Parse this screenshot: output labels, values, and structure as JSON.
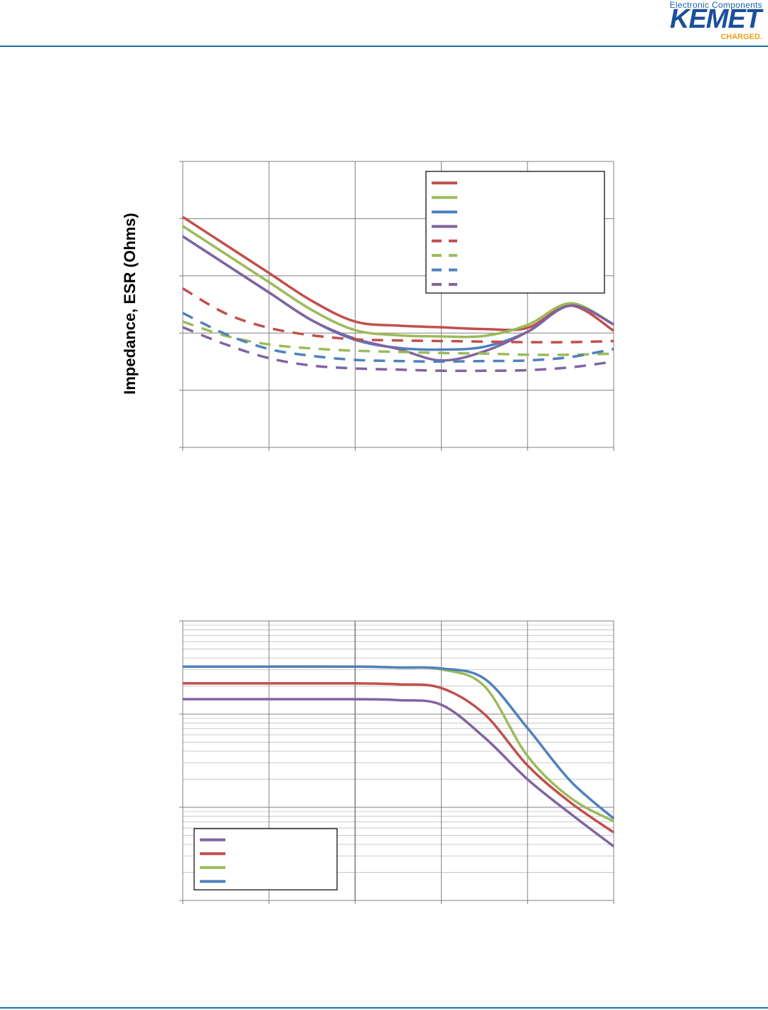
{
  "header": {
    "logo_tagline": "Electronic Components",
    "logo_brand": "KEMET",
    "logo_charged": "CHARGED."
  },
  "colors": {
    "rule": "#1f6fa8",
    "red": "#c0504d",
    "green": "#9bbb59",
    "blue": "#4f81bd",
    "purple": "#8064a2",
    "grid": "#808080"
  },
  "chart_data": [
    {
      "type": "line",
      "title": "",
      "ylabel": "Impedance, ESR (Ohms)",
      "xlabel": "",
      "x_scale": "log",
      "y_scale": "log",
      "x_decades": 5,
      "y_decades": 5,
      "grid": true,
      "legend_position": "top-right",
      "series": [
        {
          "color": "#c0504d",
          "style": "solid",
          "x": [
            0,
            0.5,
            1,
            1.5,
            2,
            2.5,
            3,
            3.5,
            4,
            4.5,
            5
          ],
          "y": [
            4.03,
            3.54,
            3.05,
            2.56,
            2.2,
            2.13,
            2.1,
            2.07,
            2.09,
            2.48,
            2.04
          ]
        },
        {
          "color": "#9bbb59",
          "style": "solid",
          "x": [
            0,
            0.5,
            1,
            1.5,
            2,
            2.5,
            3,
            3.5,
            4,
            4.5,
            5
          ],
          "y": [
            3.87,
            3.38,
            2.89,
            2.4,
            2.05,
            1.96,
            1.94,
            1.95,
            2.14,
            2.52,
            2.15
          ]
        },
        {
          "color": "#4f81bd",
          "style": "solid",
          "x": [
            0,
            0.5,
            1,
            1.5,
            2,
            2.5,
            3,
            3.5,
            4,
            4.5,
            5
          ],
          "y": [
            3.69,
            3.2,
            2.71,
            2.22,
            1.88,
            1.74,
            1.71,
            1.76,
            2.02,
            2.48,
            2.15
          ]
        },
        {
          "color": "#8064a2",
          "style": "solid",
          "x": [
            0,
            0.5,
            1,
            1.5,
            2,
            2.5,
            3,
            3.5,
            4,
            4.5,
            5
          ],
          "y": [
            3.69,
            3.2,
            2.71,
            2.22,
            1.9,
            1.72,
            1.52,
            1.68,
            2.02,
            2.48,
            2.15
          ]
        },
        {
          "color": "#c0504d",
          "style": "dashed",
          "x": [
            0,
            0.5,
            1,
            1.5,
            2,
            2.5,
            3,
            3.5,
            4,
            4.5,
            5
          ],
          "y": [
            2.78,
            2.34,
            2.09,
            1.96,
            1.89,
            1.87,
            1.86,
            1.85,
            1.84,
            1.84,
            1.86
          ]
        },
        {
          "color": "#9bbb59",
          "style": "dashed",
          "x": [
            0,
            0.5,
            1,
            1.5,
            2,
            2.5,
            3,
            3.5,
            4,
            4.5,
            5
          ],
          "y": [
            2.2,
            1.95,
            1.8,
            1.73,
            1.69,
            1.67,
            1.65,
            1.64,
            1.62,
            1.62,
            1.64
          ]
        },
        {
          "color": "#4f81bd",
          "style": "dashed",
          "x": [
            0,
            0.5,
            1,
            1.5,
            2,
            2.5,
            3,
            3.5,
            4,
            4.5,
            5
          ],
          "y": [
            2.35,
            1.98,
            1.72,
            1.6,
            1.53,
            1.51,
            1.5,
            1.51,
            1.52,
            1.58,
            1.72
          ]
        },
        {
          "color": "#8064a2",
          "style": "dashed",
          "x": [
            0,
            0.5,
            1,
            1.5,
            2,
            2.5,
            3,
            3.5,
            4,
            4.5,
            5
          ],
          "y": [
            2.1,
            1.8,
            1.56,
            1.43,
            1.38,
            1.36,
            1.34,
            1.34,
            1.35,
            1.4,
            1.5
          ]
        }
      ]
    },
    {
      "type": "line",
      "title": "",
      "ylabel": "",
      "xlabel": "",
      "x_scale": "log",
      "y_scale": "log",
      "x_decades": 5,
      "y_decades": 3,
      "grid": true,
      "legend_position": "bottom-left",
      "series": [
        {
          "color": "#8064a2",
          "x": [
            0,
            1,
            2,
            2.5,
            3,
            3.5,
            4,
            4.5,
            5
          ],
          "y": [
            2.16,
            2.16,
            2.16,
            2.15,
            2.1,
            1.75,
            1.3,
            0.93,
            0.58
          ]
        },
        {
          "color": "#c0504d",
          "x": [
            0,
            1,
            2,
            2.5,
            3,
            3.5,
            4,
            4.5,
            5
          ],
          "y": [
            2.33,
            2.33,
            2.33,
            2.32,
            2.28,
            2.0,
            1.45,
            1.05,
            0.73
          ]
        },
        {
          "color": "#9bbb59",
          "x": [
            0,
            1,
            2,
            2.5,
            3,
            3.5,
            4,
            4.5,
            5
          ],
          "y": [
            2.51,
            2.51,
            2.51,
            2.5,
            2.48,
            2.3,
            1.55,
            1.1,
            0.85
          ]
        },
        {
          "color": "#4f81bd",
          "x": [
            0,
            1,
            2,
            2.5,
            3,
            3.5,
            4,
            4.5,
            5
          ],
          "y": [
            2.51,
            2.51,
            2.51,
            2.5,
            2.49,
            2.38,
            1.85,
            1.28,
            0.88
          ]
        }
      ]
    }
  ]
}
